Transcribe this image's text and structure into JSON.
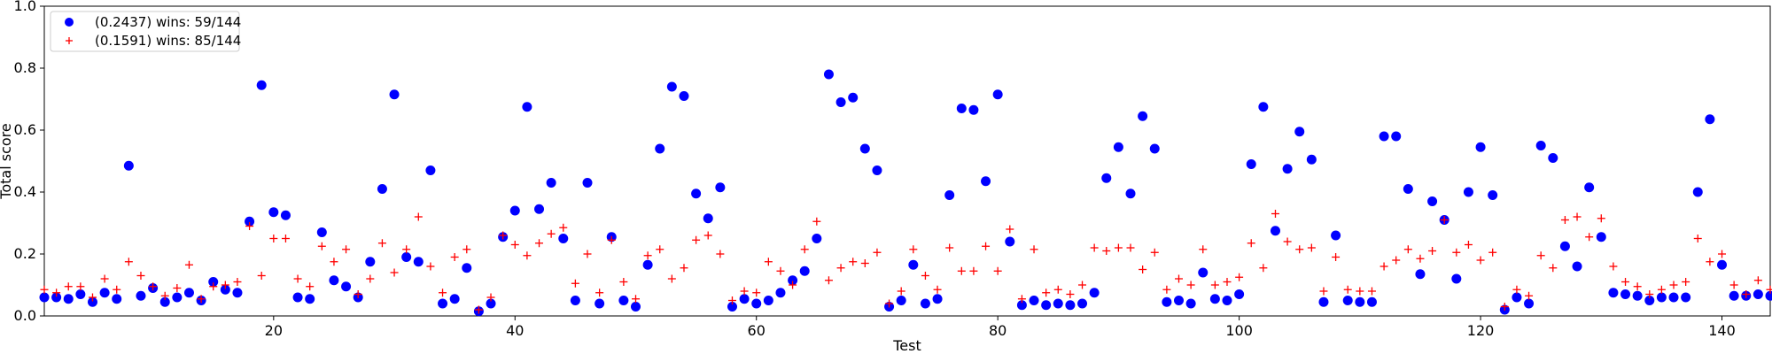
{
  "chart_data": {
    "type": "scatter",
    "title": "",
    "xlabel": "Test",
    "ylabel": "Total score",
    "xlim": [
      1,
      144
    ],
    "ylim": [
      0,
      1
    ],
    "xticks": [
      20,
      40,
      60,
      80,
      100,
      120,
      140
    ],
    "yticks": [
      0.0,
      0.2,
      0.4,
      0.6,
      0.8,
      1.0
    ],
    "ytick_labels": [
      "0.0",
      "0.2",
      "0.4",
      "0.6",
      "0.8",
      "1.0"
    ],
    "grid": false,
    "legend_position": "top-left",
    "series": [
      {
        "name": "(0.2437) wins: 59/144",
        "marker": "circle",
        "color": "#0000ff",
        "x": [
          1,
          2,
          3,
          4,
          5,
          6,
          7,
          8,
          9,
          10,
          11,
          12,
          13,
          14,
          15,
          16,
          17,
          18,
          19,
          20,
          21,
          22,
          23,
          24,
          25,
          26,
          27,
          28,
          29,
          30,
          31,
          32,
          33,
          34,
          35,
          36,
          37,
          38,
          39,
          40,
          41,
          42,
          43,
          44,
          45,
          46,
          47,
          48,
          49,
          50,
          51,
          52,
          53,
          54,
          55,
          56,
          57,
          58,
          59,
          60,
          61,
          62,
          63,
          64,
          65,
          66,
          67,
          68,
          69,
          70,
          71,
          72,
          73,
          74,
          75,
          76,
          77,
          78,
          79,
          80,
          81,
          82,
          83,
          84,
          85,
          86,
          87,
          88,
          89,
          90,
          91,
          92,
          93,
          94,
          95,
          96,
          97,
          98,
          99,
          100,
          101,
          102,
          103,
          104,
          105,
          106,
          107,
          108,
          109,
          110,
          111,
          112,
          113,
          114,
          115,
          116,
          117,
          118,
          119,
          120,
          121,
          122,
          123,
          124,
          125,
          126,
          127,
          128,
          129,
          130,
          131,
          132,
          133,
          134,
          135,
          136,
          137,
          138,
          139,
          140,
          141,
          142,
          143,
          144
        ],
        "y": [
          0.06,
          0.06,
          0.055,
          0.07,
          0.045,
          0.075,
          0.055,
          0.485,
          0.065,
          0.09,
          0.045,
          0.06,
          0.075,
          0.05,
          0.11,
          0.085,
          0.075,
          0.305,
          0.745,
          0.335,
          0.325,
          0.06,
          0.055,
          0.27,
          0.115,
          0.095,
          0.06,
          0.175,
          0.41,
          0.715,
          0.19,
          0.175,
          0.47,
          0.04,
          0.055,
          0.155,
          0.015,
          0.04,
          0.255,
          0.34,
          0.675,
          0.345,
          0.43,
          0.25,
          0.05,
          0.43,
          0.04,
          0.255,
          0.05,
          0.03,
          0.165,
          0.54,
          0.74,
          0.71,
          0.395,
          0.315,
          0.415,
          0.03,
          0.055,
          0.04,
          0.05,
          0.075,
          0.115,
          0.145,
          0.25,
          0.78,
          0.69,
          0.705,
          0.54,
          0.47,
          0.03,
          0.05,
          0.165,
          0.04,
          0.055,
          0.39,
          0.67,
          0.665,
          0.435,
          0.715,
          0.24,
          0.035,
          0.05,
          0.035,
          0.04,
          0.035,
          0.04,
          0.075,
          0.445,
          0.545,
          0.395,
          0.645,
          0.54,
          0.045,
          0.05,
          0.04,
          0.14,
          0.055,
          0.05,
          0.07,
          0.49,
          0.675,
          0.275,
          0.475,
          0.595,
          0.505,
          0.045,
          0.26,
          0.05,
          0.045,
          0.045,
          0.58,
          0.58,
          0.41,
          0.135,
          0.37,
          0.31,
          0.12,
          0.4,
          0.545,
          0.39,
          0.02,
          0.06,
          0.04,
          0.55,
          0.51,
          0.225,
          0.16,
          0.415,
          0.255,
          0.075,
          0.07,
          0.065,
          0.05,
          0.06,
          0.06,
          0.06,
          0.4,
          0.635,
          0.165,
          0.065,
          0.065,
          0.07,
          0.065
        ]
      },
      {
        "name": "(0.1591) wins: 85/144",
        "marker": "plus",
        "color": "#ff0000",
        "x": [
          1,
          2,
          3,
          4,
          5,
          6,
          7,
          8,
          9,
          10,
          11,
          12,
          13,
          14,
          15,
          16,
          17,
          18,
          19,
          20,
          21,
          22,
          23,
          24,
          25,
          26,
          27,
          28,
          29,
          30,
          31,
          32,
          33,
          34,
          35,
          36,
          37,
          38,
          39,
          40,
          41,
          42,
          43,
          44,
          45,
          46,
          47,
          48,
          49,
          50,
          51,
          52,
          53,
          54,
          55,
          56,
          57,
          58,
          59,
          60,
          61,
          62,
          63,
          64,
          65,
          66,
          67,
          68,
          69,
          70,
          71,
          72,
          73,
          74,
          75,
          76,
          77,
          78,
          79,
          80,
          81,
          82,
          83,
          84,
          85,
          86,
          87,
          88,
          89,
          90,
          91,
          92,
          93,
          94,
          95,
          96,
          97,
          98,
          99,
          100,
          101,
          102,
          103,
          104,
          105,
          106,
          107,
          108,
          109,
          110,
          111,
          112,
          113,
          114,
          115,
          116,
          117,
          118,
          119,
          120,
          121,
          122,
          123,
          124,
          125,
          126,
          127,
          128,
          129,
          130,
          131,
          132,
          133,
          134,
          135,
          136,
          137,
          138,
          139,
          140,
          141,
          142,
          143,
          144
        ],
        "y": [
          0.085,
          0.075,
          0.095,
          0.095,
          0.06,
          0.12,
          0.085,
          0.175,
          0.13,
          0.095,
          0.065,
          0.09,
          0.165,
          0.055,
          0.095,
          0.1,
          0.11,
          0.29,
          0.13,
          0.25,
          0.25,
          0.12,
          0.095,
          0.225,
          0.175,
          0.215,
          0.07,
          0.12,
          0.235,
          0.14,
          0.215,
          0.32,
          0.16,
          0.075,
          0.19,
          0.215,
          0.02,
          0.06,
          0.26,
          0.23,
          0.195,
          0.235,
          0.265,
          0.285,
          0.105,
          0.2,
          0.075,
          0.245,
          0.11,
          0.055,
          0.195,
          0.215,
          0.12,
          0.155,
          0.245,
          0.26,
          0.2,
          0.05,
          0.08,
          0.075,
          0.175,
          0.145,
          0.1,
          0.215,
          0.305,
          0.115,
          0.155,
          0.175,
          0.17,
          0.205,
          0.04,
          0.08,
          0.215,
          0.13,
          0.085,
          0.22,
          0.145,
          0.145,
          0.225,
          0.145,
          0.28,
          0.055,
          0.215,
          0.075,
          0.085,
          0.07,
          0.1,
          0.22,
          0.21,
          0.22,
          0.22,
          0.15,
          0.205,
          0.085,
          0.12,
          0.1,
          0.215,
          0.1,
          0.11,
          0.125,
          0.235,
          0.155,
          0.33,
          0.24,
          0.215,
          0.22,
          0.08,
          0.19,
          0.085,
          0.08,
          0.08,
          0.16,
          0.18,
          0.215,
          0.185,
          0.21,
          0.31,
          0.205,
          0.23,
          0.18,
          0.205,
          0.03,
          0.085,
          0.065,
          0.195,
          0.155,
          0.31,
          0.32,
          0.255,
          0.315,
          0.16,
          0.11,
          0.095,
          0.07,
          0.085,
          0.1,
          0.11,
          0.25,
          0.175,
          0.2,
          0.1,
          0.07,
          0.115,
          0.085
        ]
      }
    ]
  }
}
